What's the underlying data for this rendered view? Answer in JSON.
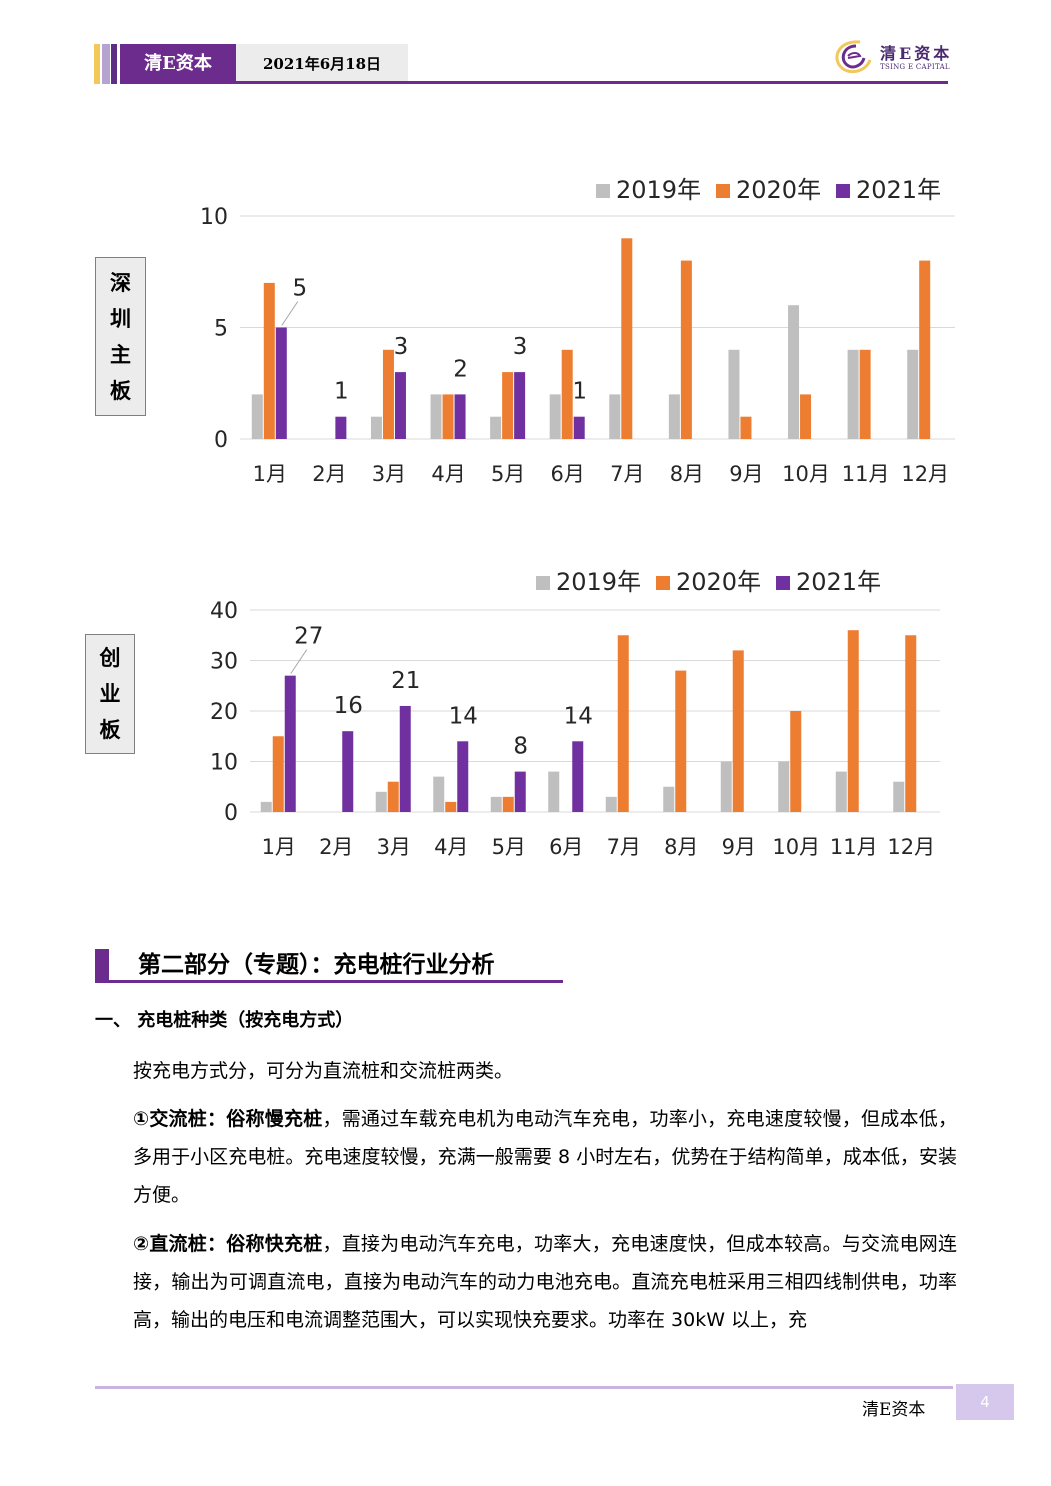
{
  "header": {
    "brand": "清E资本",
    "date": "2021年6月18日",
    "logo_cn": "清E资本",
    "logo_en": "TSING E CAPITAL",
    "accent_color": "#6c2c8e"
  },
  "chart_data": [
    {
      "type": "bar",
      "side_label": [
        "深",
        "圳",
        "主",
        "板"
      ],
      "categories": [
        "1月",
        "2月",
        "3月",
        "4月",
        "5月",
        "6月",
        "7月",
        "8月",
        "9月",
        "10月",
        "11月",
        "12月"
      ],
      "series": [
        {
          "name": "2019年",
          "color": "#bfbfbf",
          "values": [
            2,
            0,
            1,
            2,
            1,
            2,
            2,
            2,
            4,
            6,
            4,
            4
          ]
        },
        {
          "name": "2020年",
          "color": "#ed7d31",
          "values": [
            7,
            0,
            4,
            2,
            3,
            4,
            9,
            8,
            1,
            2,
            4,
            8
          ]
        },
        {
          "name": "2021年",
          "color": "#7030a0",
          "values": [
            5,
            1,
            3,
            2,
            3,
            1,
            0,
            0,
            0,
            0,
            0,
            0
          ]
        }
      ],
      "data_labels": [
        {
          "category_index": 0,
          "series": "2021年",
          "text": "5"
        },
        {
          "category_index": 1,
          "series": "2021年",
          "text": "1"
        },
        {
          "category_index": 2,
          "series": "2021年",
          "text": "3"
        },
        {
          "category_index": 3,
          "series": "2021年",
          "text": "2"
        },
        {
          "category_index": 4,
          "series": "2021年",
          "text": "3"
        },
        {
          "category_index": 5,
          "series": "2021年",
          "text": "1"
        }
      ],
      "yticks": [
        "0",
        "5",
        "10"
      ],
      "ylim": [
        0,
        10
      ],
      "legend_position": "top-right",
      "grid": true
    },
    {
      "type": "bar",
      "side_label": [
        "创",
        "业",
        "板"
      ],
      "categories": [
        "1月",
        "2月",
        "3月",
        "4月",
        "5月",
        "6月",
        "7月",
        "8月",
        "9月",
        "10月",
        "11月",
        "12月"
      ],
      "series": [
        {
          "name": "2019年",
          "color": "#bfbfbf",
          "values": [
            2,
            0,
            4,
            7,
            3,
            8,
            3,
            5,
            10,
            10,
            8,
            6
          ]
        },
        {
          "name": "2020年",
          "color": "#ed7d31",
          "values": [
            15,
            0,
            6,
            2,
            3,
            0,
            35,
            28,
            32,
            20,
            36,
            35
          ]
        },
        {
          "name": "2021年",
          "color": "#7030a0",
          "values": [
            27,
            16,
            21,
            14,
            8,
            14,
            0,
            0,
            0,
            0,
            0,
            0
          ]
        }
      ],
      "data_labels": [
        {
          "category_index": 0,
          "series": "2021年",
          "text": "27"
        },
        {
          "category_index": 1,
          "series": "2021年",
          "text": "16"
        },
        {
          "category_index": 2,
          "series": "2021年",
          "text": "21"
        },
        {
          "category_index": 3,
          "series": "2021年",
          "text": "14"
        },
        {
          "category_index": 4,
          "series": "2021年",
          "text": "8"
        },
        {
          "category_index": 5,
          "series": "2021年",
          "text": "14"
        }
      ],
      "yticks": [
        "0",
        "10",
        "20",
        "30",
        "40"
      ],
      "ylim": [
        0,
        40
      ],
      "legend_position": "top-right",
      "grid": true
    }
  ],
  "section": {
    "title": "第二部分（专题）：充电桩行业分析",
    "subheading": "一、  充电桩种类（按充电方式）",
    "para1": "按充电方式分，可分为直流桩和交流桩两类。",
    "para2_bold": "①交流桩：俗称慢充桩",
    "para2_text": "，需通过车载充电机为电动汽车充电，功率小，充电速度较慢，但成本低，多用于小区充电桩。充电速度较慢，充满一般需要 8 小时左右，优势在于结构简单，成本低，安装方便。",
    "para3_bold": "②直流桩：俗称快充桩",
    "para3_text": "，直接为电动汽车充电，功率大，充电速度快，但成本较高。与交流电网连接，输出为可调直流电，直接为电动汽车的动力电池充电。直流充电桩采用三相四线制供电，功率高，输出的电压和电流调整范围大，可以实现快充要求。功率在 30kW 以上，充"
  },
  "footer": {
    "brand": "清E资本",
    "page": "4"
  }
}
